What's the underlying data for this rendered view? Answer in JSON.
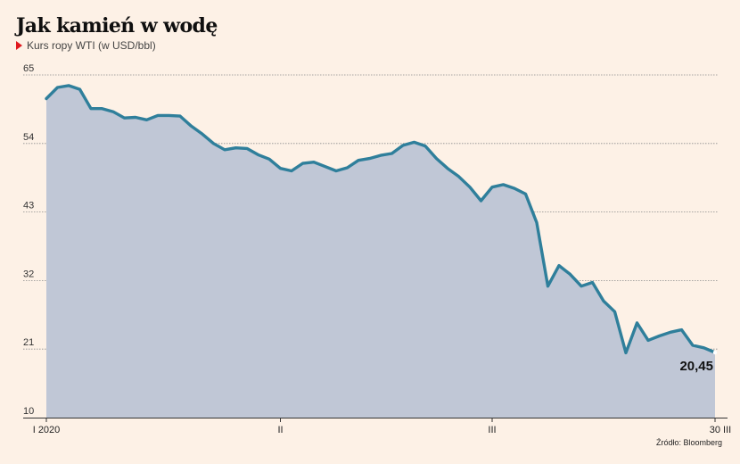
{
  "header": {
    "title": "Jak kamień w wodę",
    "subtitle": "Kurs ropy WTI (w USD/bbl)"
  },
  "source": "Źródło: Bloomberg",
  "colors": {
    "background": "#fdf1e6",
    "line": "#2f7f9b",
    "area": "#c0c7d6",
    "grid": "#8c8c8c",
    "marker": "#e0191e"
  },
  "chart_data": {
    "type": "area",
    "title": "Jak kamień w wodę",
    "subtitle": "Kurs ropy WTI (w USD/bbl)",
    "ylim": [
      10,
      65
    ],
    "yticks": [
      65,
      54,
      43,
      32,
      21,
      10
    ],
    "grid": true,
    "x_tick_labels": [
      {
        "label": "I 2020",
        "index": 0
      },
      {
        "label": "II",
        "index": 21
      },
      {
        "label": "III",
        "index": 40
      },
      {
        "label": "30 III",
        "index": 60
      }
    ],
    "end_label": "20,45",
    "series": [
      {
        "values": [
          61.2,
          63.0,
          63.3,
          62.7,
          59.6,
          59.6,
          59.1,
          58.1,
          58.2,
          57.8,
          58.5,
          58.5,
          58.4,
          56.8,
          55.5,
          54.0,
          53.0,
          53.3,
          53.2,
          52.2,
          51.5,
          50.0,
          49.6,
          50.8,
          51.0,
          50.3,
          49.6,
          50.1,
          51.3,
          51.6,
          52.1,
          52.4,
          53.7,
          54.2,
          53.6,
          51.6,
          50.0,
          48.7,
          47.0,
          44.8,
          47.0,
          47.4,
          46.8,
          45.9,
          41.3,
          31.1,
          34.4,
          33.0,
          31.1,
          31.7,
          28.7,
          27.0,
          20.4,
          25.2,
          22.4,
          23.1,
          23.7,
          24.1,
          21.6,
          21.2,
          20.45
        ]
      }
    ]
  }
}
